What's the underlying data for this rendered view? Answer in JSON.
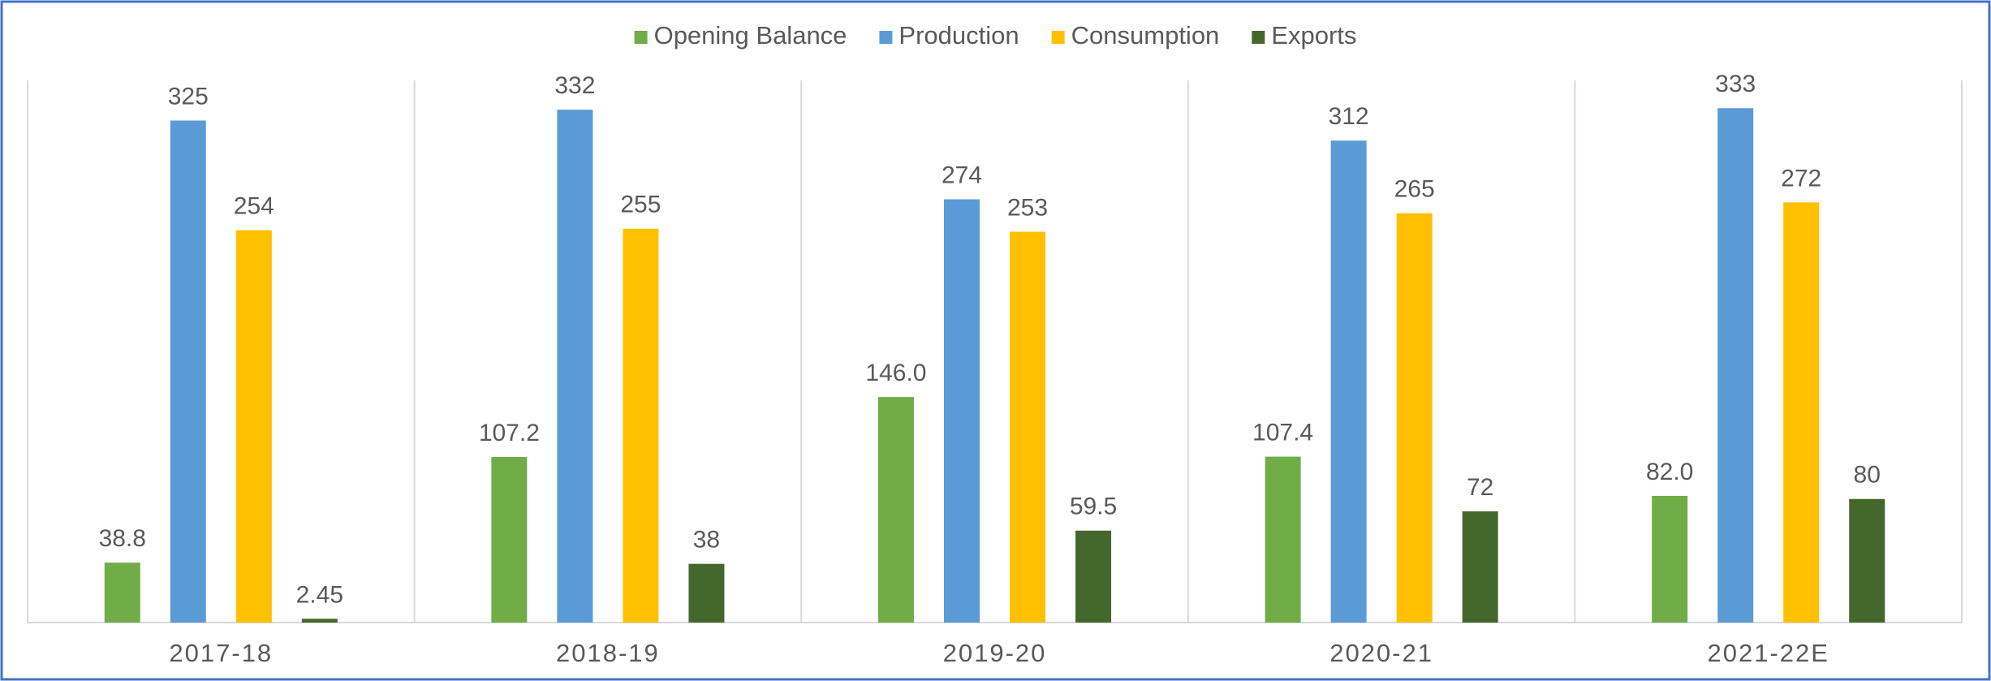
{
  "chart_data": {
    "type": "bar",
    "categories": [
      "2017-18",
      "2018-19",
      "2019-20",
      "2020-21",
      "2021-22E"
    ],
    "series": [
      {
        "name": "Opening Balance",
        "color": "#70ad47",
        "values": [
          38.8,
          107.2,
          146.0,
          107.4,
          82.0
        ],
        "value_labels": [
          "38.8",
          "107.2",
          "146.0",
          "107.4",
          "82.0"
        ]
      },
      {
        "name": "Production",
        "color": "#5b9bd5",
        "values": [
          325,
          332,
          274,
          312,
          333
        ]
      },
      {
        "name": "Consumption",
        "color": "#ffc000",
        "values": [
          254,
          255,
          253,
          265,
          272
        ]
      },
      {
        "name": "Exports",
        "color": "#43682b",
        "values": [
          2.45,
          38,
          59.5,
          72,
          80
        ]
      }
    ],
    "ylim": [
      0,
      351
    ],
    "legend": "top"
  }
}
